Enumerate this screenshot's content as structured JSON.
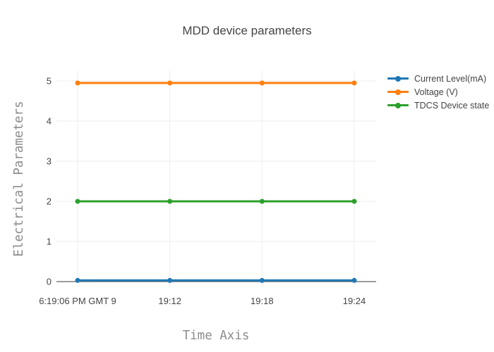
{
  "chart_data": {
    "type": "line",
    "mode": "lines+markers",
    "title": "MDD device parameters",
    "xlabel": "Time Axis",
    "ylabel": "Electrical Parameters",
    "x_tick_labels": [
      "6:19:06 PM GMT 9",
      "19:12",
      "19:18",
      "19:24"
    ],
    "y_ticks": [
      0,
      1,
      2,
      3,
      4,
      5
    ],
    "ylim": [
      -0.15,
      5.26
    ],
    "grid": true,
    "legend_position": "right",
    "series": [
      {
        "name": "Current Level(mA)",
        "color": "#1f77b4",
        "values": [
          0.03,
          0.03,
          0.03,
          0.03
        ]
      },
      {
        "name": "Voltage (V)",
        "color": "#ff7f0e",
        "values": [
          4.95,
          4.95,
          4.95,
          4.95
        ]
      },
      {
        "name": "TDCS Device state",
        "color": "#2ca02c",
        "values": [
          2,
          2,
          2,
          2
        ]
      }
    ]
  },
  "colors": {
    "background": "#ffffff",
    "grid": "#ededed",
    "zeroline": "#606060",
    "tick_text": "#444444",
    "title_text": "#444444",
    "axis_title_text": "#8c8c8c",
    "legend_text": "#444444"
  }
}
